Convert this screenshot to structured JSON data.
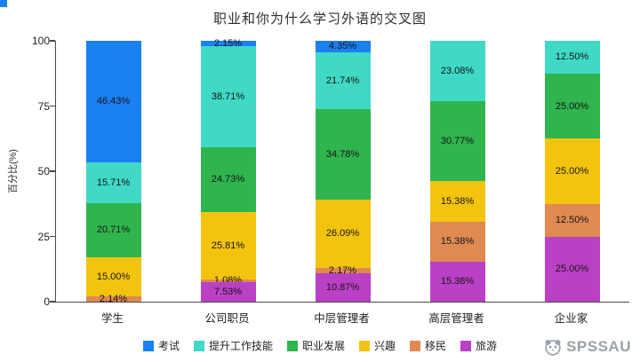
{
  "page": {
    "title": "职业和你为什么学习外语的交叉图",
    "y_axis_label": "百分比(%)",
    "watermark": "SPSSAU"
  },
  "chart_data": {
    "type": "bar",
    "variant": "stacked-percent",
    "title": "职业和你为什么学习外语的交叉图",
    "xlabel": "",
    "ylabel": "百分比(%)",
    "ylim": [
      0,
      100
    ],
    "yticks": [
      0,
      25,
      50,
      75,
      100
    ],
    "grid": false,
    "legend_position": "bottom",
    "categories": [
      "学生",
      "公司职员",
      "中层管理者",
      "高层管理者",
      "企业家"
    ],
    "series": [
      {
        "name": "考试",
        "color": "#1b80f2",
        "values": [
          46.43,
          2.15,
          4.35,
          0,
          0
        ]
      },
      {
        "name": "提升工作技能",
        "color": "#3fd9c6",
        "values": [
          15.71,
          38.71,
          21.74,
          23.08,
          12.5
        ]
      },
      {
        "name": "职业发展",
        "color": "#2fb44e",
        "values": [
          20.71,
          24.73,
          34.78,
          30.77,
          25.0
        ]
      },
      {
        "name": "兴趣",
        "color": "#f3c40f",
        "values": [
          15.0,
          25.81,
          26.09,
          15.38,
          25.0
        ]
      },
      {
        "name": "移民",
        "color": "#de8a52",
        "values": [
          2.14,
          1.08,
          2.17,
          15.38,
          12.5
        ]
      },
      {
        "name": "旅游",
        "color": "#ba41c5",
        "values": [
          0,
          7.53,
          10.87,
          15.38,
          25.0
        ]
      }
    ],
    "label_format": "percent-2dp"
  }
}
